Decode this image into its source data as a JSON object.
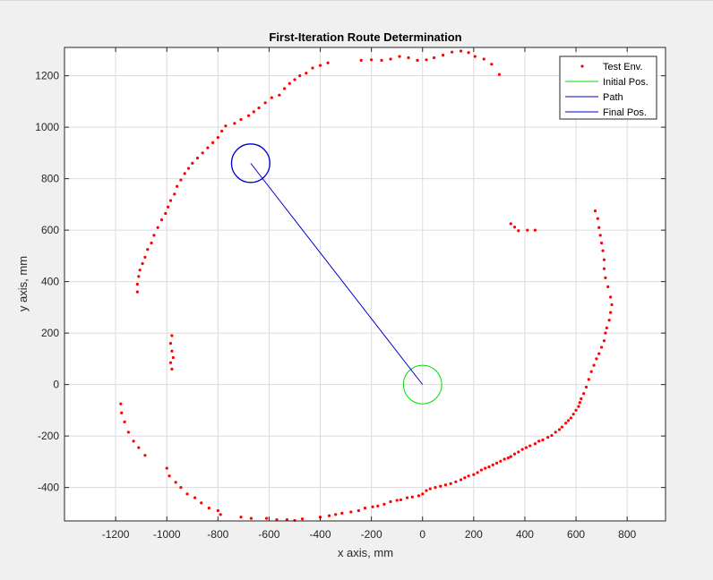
{
  "chart_data": {
    "type": "scatter",
    "title": "First-Iteration Route Determination",
    "xlabel": "x axis, mm",
    "ylabel": "y axis, mm",
    "xlim": [
      -1400,
      950
    ],
    "ylim": [
      -530,
      1310
    ],
    "xticks": [
      -1200,
      -1000,
      -800,
      -600,
      -400,
      -200,
      0,
      200,
      400,
      600,
      800
    ],
    "yticks": [
      -400,
      -200,
      0,
      200,
      400,
      600,
      800,
      1000,
      1200
    ],
    "grid": true,
    "legend_placement": "top-right",
    "colors": {
      "test_env": "#ff0000",
      "initial_pos": "#00dd00",
      "path": "#0000cc",
      "final_pos": "#0000cc"
    },
    "legend": [
      {
        "label": "Test Env.",
        "marker": "dot",
        "color": "#ff0000"
      },
      {
        "label": "Initial Pos.",
        "marker": "line",
        "color": "#00dd00"
      },
      {
        "label": "Path",
        "marker": "line",
        "color": "#0000cc"
      },
      {
        "label": "Final Pos.",
        "marker": "line",
        "color": "#0000cc"
      }
    ],
    "initial_pos": {
      "x": 0,
      "y": 0,
      "radius": 75
    },
    "final_pos": {
      "x": -672,
      "y": 860,
      "radius": 75
    },
    "path": [
      [
        0,
        0
      ],
      [
        -672,
        860
      ]
    ],
    "test_env_points": [
      [
        -1180,
        -75
      ],
      [
        -1177,
        -110
      ],
      [
        -1165,
        -145
      ],
      [
        -1150,
        -185
      ],
      [
        -1130,
        -220
      ],
      [
        -1110,
        -245
      ],
      [
        -1085,
        -275
      ],
      [
        -1000,
        -325
      ],
      [
        -990,
        -355
      ],
      [
        -965,
        -380
      ],
      [
        -945,
        -400
      ],
      [
        -920,
        -425
      ],
      [
        -890,
        -440
      ],
      [
        -865,
        -460
      ],
      [
        -835,
        -480
      ],
      [
        -800,
        -490
      ],
      [
        -790,
        -505
      ],
      [
        -710,
        -515
      ],
      [
        -670,
        -520
      ],
      [
        -610,
        -520
      ],
      [
        -570,
        -525
      ],
      [
        -530,
        -525
      ],
      [
        -500,
        -528
      ],
      [
        -470,
        -522
      ],
      [
        -400,
        -515
      ],
      [
        -365,
        -510
      ],
      [
        -340,
        -505
      ],
      [
        -315,
        -500
      ],
      [
        -280,
        -495
      ],
      [
        -250,
        -490
      ],
      [
        -225,
        -480
      ],
      [
        -195,
        -475
      ],
      [
        -175,
        -472
      ],
      [
        -150,
        -465
      ],
      [
        -125,
        -455
      ],
      [
        -100,
        -450
      ],
      [
        -85,
        -448
      ],
      [
        -60,
        -440
      ],
      [
        -40,
        -437
      ],
      [
        -15,
        -432
      ],
      [
        0,
        -425
      ],
      [
        15,
        -412
      ],
      [
        30,
        -405
      ],
      [
        50,
        -400
      ],
      [
        70,
        -395
      ],
      [
        90,
        -390
      ],
      [
        110,
        -385
      ],
      [
        130,
        -378
      ],
      [
        150,
        -370
      ],
      [
        165,
        -362
      ],
      [
        180,
        -355
      ],
      [
        200,
        -350
      ],
      [
        215,
        -342
      ],
      [
        230,
        -332
      ],
      [
        245,
        -325
      ],
      [
        260,
        -320
      ],
      [
        275,
        -312
      ],
      [
        290,
        -305
      ],
      [
        305,
        -298
      ],
      [
        320,
        -290
      ],
      [
        335,
        -285
      ],
      [
        345,
        -280
      ],
      [
        360,
        -270
      ],
      [
        375,
        -262
      ],
      [
        390,
        -252
      ],
      [
        405,
        -245
      ],
      [
        420,
        -238
      ],
      [
        440,
        -230
      ],
      [
        455,
        -220
      ],
      [
        470,
        -215
      ],
      [
        490,
        -205
      ],
      [
        505,
        -198
      ],
      [
        520,
        -185
      ],
      [
        535,
        -175
      ],
      [
        545,
        -165
      ],
      [
        560,
        -150
      ],
      [
        570,
        -140
      ],
      [
        580,
        -130
      ],
      [
        590,
        -115
      ],
      [
        600,
        -100
      ],
      [
        610,
        -85
      ],
      [
        615,
        -70
      ],
      [
        620,
        -55
      ],
      [
        630,
        -35
      ],
      [
        640,
        -10
      ],
      [
        650,
        20
      ],
      [
        660,
        50
      ],
      [
        670,
        75
      ],
      [
        680,
        100
      ],
      [
        690,
        120
      ],
      [
        700,
        145
      ],
      [
        710,
        170
      ],
      [
        715,
        200
      ],
      [
        720,
        220
      ],
      [
        730,
        250
      ],
      [
        735,
        280
      ],
      [
        740,
        310
      ],
      [
        735,
        340
      ],
      [
        725,
        380
      ],
      [
        715,
        415
      ],
      [
        710,
        450
      ],
      [
        710,
        485
      ],
      [
        705,
        520
      ],
      [
        700,
        550
      ],
      [
        695,
        580
      ],
      [
        690,
        610
      ],
      [
        685,
        645
      ],
      [
        675,
        675
      ],
      [
        345,
        625
      ],
      [
        360,
        612
      ],
      [
        375,
        598
      ],
      [
        410,
        600
      ],
      [
        440,
        600
      ],
      [
        -1115,
        360
      ],
      [
        -1115,
        390
      ],
      [
        -1110,
        420
      ],
      [
        -1105,
        445
      ],
      [
        -1095,
        470
      ],
      [
        -1085,
        495
      ],
      [
        -1075,
        525
      ],
      [
        -1060,
        550
      ],
      [
        -1050,
        580
      ],
      [
        -1035,
        610
      ],
      [
        -1020,
        640
      ],
      [
        -1005,
        665
      ],
      [
        -995,
        690
      ],
      [
        -985,
        715
      ],
      [
        -970,
        740
      ],
      [
        -960,
        770
      ],
      [
        -945,
        795
      ],
      [
        -930,
        820
      ],
      [
        -915,
        840
      ],
      [
        -900,
        860
      ],
      [
        -880,
        880
      ],
      [
        -860,
        900
      ],
      [
        -840,
        920
      ],
      [
        -820,
        940
      ],
      [
        -800,
        960
      ],
      [
        -785,
        985
      ],
      [
        -770,
        1005
      ],
      [
        -735,
        1015
      ],
      [
        -710,
        1030
      ],
      [
        -680,
        1045
      ],
      [
        -660,
        1060
      ],
      [
        -640,
        1075
      ],
      [
        -615,
        1095
      ],
      [
        -590,
        1115
      ],
      [
        -560,
        1125
      ],
      [
        -540,
        1150
      ],
      [
        -520,
        1170
      ],
      [
        -500,
        1185
      ],
      [
        -480,
        1200
      ],
      [
        -455,
        1210
      ],
      [
        -430,
        1230
      ],
      [
        -400,
        1240
      ],
      [
        -370,
        1250
      ],
      [
        -240,
        1260
      ],
      [
        -200,
        1262
      ],
      [
        -160,
        1260
      ],
      [
        -125,
        1265
      ],
      [
        -90,
        1275
      ],
      [
        -55,
        1270
      ],
      [
        -20,
        1260
      ],
      [
        15,
        1262
      ],
      [
        45,
        1270
      ],
      [
        80,
        1280
      ],
      [
        115,
        1292
      ],
      [
        150,
        1296
      ],
      [
        180,
        1290
      ],
      [
        205,
        1275
      ],
      [
        240,
        1265
      ],
      [
        270,
        1245
      ],
      [
        300,
        1205
      ],
      [
        -980,
        190
      ],
      [
        -985,
        160
      ],
      [
        -980,
        130
      ],
      [
        -975,
        105
      ],
      [
        -985,
        85
      ],
      [
        -980,
        60
      ]
    ]
  }
}
